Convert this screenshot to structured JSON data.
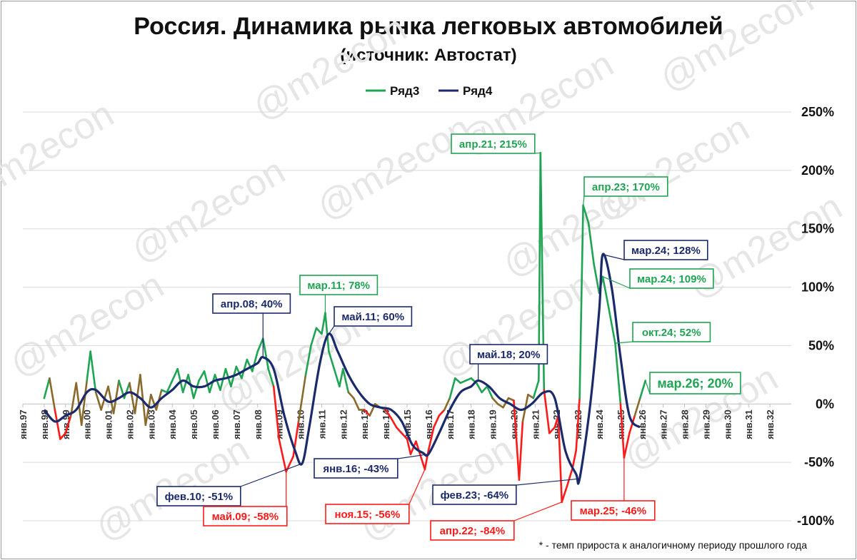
{
  "title": "Россия. Динамика рынка легковых автомобилей",
  "subtitle": "(источник: Автостат)",
  "footnote": "* - темп прироста к аналогичному периоду прошлого года",
  "watermark": "@m2econ",
  "colors": {
    "green": "#1ea453",
    "red": "#ff1a1a",
    "brown": "#8a6a2a",
    "navy": "#1b2a6b",
    "grid": "#d9d9d9"
  },
  "chart_data": {
    "type": "line",
    "legend_position": "top",
    "y_unit": "%",
    "ylim": [
      -100,
      250
    ],
    "yticks": [
      250,
      200,
      150,
      100,
      50,
      0,
      -50,
      -100
    ],
    "ytick_labels": [
      "250%",
      "200%",
      "150%",
      "100%",
      "50%",
      "0%",
      "-50%",
      "-100%"
    ],
    "x_start": "1997-01",
    "x_end": "2032-12",
    "xtick_labels": [
      "янв.97",
      "янв.98",
      "янв.99",
      "янв.00",
      "янв.01",
      "янв.02",
      "янв.03",
      "янв.04",
      "янв.05",
      "янв.06",
      "янв.07",
      "янв.08",
      "янв.09",
      "янв.10",
      "янв.11",
      "янв.12",
      "янв.13",
      "янв.14",
      "янв.15",
      "янв.16",
      "янв.17",
      "янв.18",
      "янв.19",
      "янв.20",
      "янв.21",
      "янв.22",
      "янв.23",
      "янв.24",
      "янв.25",
      "янв.26",
      "янв.27",
      "янв.28",
      "янв.29",
      "янв.30",
      "янв.31",
      "янв.32"
    ],
    "series": [
      {
        "name": "Ряд3",
        "color_positive": "#1ea453",
        "color_negative": "#ff1a1a",
        "points": [
          [
            "1998-01",
            5
          ],
          [
            "1998-04",
            22
          ],
          [
            "1998-07",
            -5
          ],
          [
            "1998-10",
            -30
          ],
          [
            "1999-01",
            -25
          ],
          [
            "1999-04",
            -10
          ],
          [
            "1999-07",
            18
          ],
          [
            "1999-10",
            -18
          ],
          [
            "2000-01",
            20
          ],
          [
            "2000-03",
            45
          ],
          [
            "2000-06",
            10
          ],
          [
            "2000-09",
            -5
          ],
          [
            "2001-01",
            15
          ],
          [
            "2001-04",
            -8
          ],
          [
            "2001-07",
            20
          ],
          [
            "2001-10",
            5
          ],
          [
            "2002-01",
            18
          ],
          [
            "2002-04",
            -8
          ],
          [
            "2002-07",
            25
          ],
          [
            "2002-10",
            -18
          ],
          [
            "2003-01",
            8
          ],
          [
            "2003-04",
            -5
          ],
          [
            "2003-07",
            12
          ],
          [
            "2003-10",
            10
          ],
          [
            "2004-01",
            20
          ],
          [
            "2004-04",
            30
          ],
          [
            "2004-07",
            10
          ],
          [
            "2004-10",
            25
          ],
          [
            "2005-01",
            5
          ],
          [
            "2005-04",
            20
          ],
          [
            "2005-07",
            28
          ],
          [
            "2005-10",
            10
          ],
          [
            "2006-01",
            25
          ],
          [
            "2006-04",
            12
          ],
          [
            "2006-07",
            30
          ],
          [
            "2006-10",
            15
          ],
          [
            "2007-01",
            32
          ],
          [
            "2007-04",
            22
          ],
          [
            "2007-07",
            38
          ],
          [
            "2007-10",
            28
          ],
          [
            "2008-01",
            45
          ],
          [
            "2008-04",
            56
          ],
          [
            "2008-07",
            30
          ],
          [
            "2008-10",
            15
          ],
          [
            "2009-01",
            -30
          ],
          [
            "2009-05",
            -58
          ],
          [
            "2009-09",
            -45
          ],
          [
            "2009-12",
            -15
          ],
          [
            "2010-04",
            25
          ],
          [
            "2010-07",
            50
          ],
          [
            "2010-10",
            65
          ],
          [
            "2011-01",
            60
          ],
          [
            "2011-03",
            78
          ],
          [
            "2011-05",
            45
          ],
          [
            "2011-08",
            30
          ],
          [
            "2011-11",
            15
          ],
          [
            "2012-01",
            30
          ],
          [
            "2012-04",
            10
          ],
          [
            "2012-07",
            5
          ],
          [
            "2012-10",
            -5
          ],
          [
            "2013-01",
            -5
          ],
          [
            "2013-04",
            -10
          ],
          [
            "2013-07",
            0
          ],
          [
            "2013-10",
            -3
          ],
          [
            "2014-01",
            -5
          ],
          [
            "2014-04",
            -12
          ],
          [
            "2014-07",
            -20
          ],
          [
            "2014-10",
            -25
          ],
          [
            "2015-01",
            -30
          ],
          [
            "2015-03",
            -43
          ],
          [
            "2015-06",
            -32
          ],
          [
            "2015-11",
            -56
          ],
          [
            "2016-01",
            -40
          ],
          [
            "2016-04",
            -20
          ],
          [
            "2016-07",
            -10
          ],
          [
            "2016-10",
            -5
          ],
          [
            "2017-01",
            5
          ],
          [
            "2017-04",
            22
          ],
          [
            "2017-07",
            18
          ],
          [
            "2017-10",
            20
          ],
          [
            "2018-01",
            22
          ],
          [
            "2018-04",
            18
          ],
          [
            "2018-07",
            10
          ],
          [
            "2018-10",
            15
          ],
          [
            "2019-01",
            5
          ],
          [
            "2019-04",
            0
          ],
          [
            "2019-07",
            -3
          ],
          [
            "2019-10",
            5
          ],
          [
            "2020-01",
            3
          ],
          [
            "2020-04",
            -65
          ],
          [
            "2020-06",
            -15
          ],
          [
            "2020-09",
            8
          ],
          [
            "2020-12",
            5
          ],
          [
            "2021-03",
            20
          ],
          [
            "2021-04",
            215
          ],
          [
            "2021-06",
            12
          ],
          [
            "2021-09",
            -25
          ],
          [
            "2021-12",
            -20
          ],
          [
            "2022-02",
            -10
          ],
          [
            "2022-04",
            -84
          ],
          [
            "2022-07",
            -70
          ],
          [
            "2022-10",
            -55
          ],
          [
            "2022-12",
            -40
          ],
          [
            "2023-02",
            5
          ],
          [
            "2023-04",
            170
          ],
          [
            "2023-07",
            155
          ],
          [
            "2023-10",
            120
          ],
          [
            "2024-01",
            95
          ],
          [
            "2024-03",
            109
          ],
          [
            "2024-06",
            85
          ],
          [
            "2024-10",
            52
          ],
          [
            "2025-01",
            0
          ],
          [
            "2025-03",
            -46
          ],
          [
            "2025-06",
            -25
          ],
          [
            "2025-09",
            -10
          ],
          [
            "2025-12",
            5
          ],
          [
            "2026-03",
            20
          ]
        ]
      },
      {
        "name": "Ряд4",
        "color": "#1b2a6b",
        "points": [
          [
            "1998-01",
            -5
          ],
          [
            "1998-07",
            -15
          ],
          [
            "1999-01",
            -10
          ],
          [
            "1999-07",
            -5
          ],
          [
            "2000-01",
            10
          ],
          [
            "2000-06",
            12
          ],
          [
            "2001-01",
            2
          ],
          [
            "2001-07",
            5
          ],
          [
            "2002-01",
            10
          ],
          [
            "2002-07",
            5
          ],
          [
            "2003-01",
            -3
          ],
          [
            "2003-07",
            5
          ],
          [
            "2004-01",
            12
          ],
          [
            "2004-07",
            20
          ],
          [
            "2005-01",
            15
          ],
          [
            "2005-07",
            15
          ],
          [
            "2006-01",
            20
          ],
          [
            "2006-07",
            22
          ],
          [
            "2007-01",
            25
          ],
          [
            "2007-07",
            30
          ],
          [
            "2008-01",
            35
          ],
          [
            "2008-04",
            40
          ],
          [
            "2008-10",
            30
          ],
          [
            "2009-04",
            -10
          ],
          [
            "2009-10",
            -40
          ],
          [
            "2010-02",
            -51
          ],
          [
            "2010-06",
            -20
          ],
          [
            "2010-12",
            35
          ],
          [
            "2011-05",
            60
          ],
          [
            "2011-10",
            45
          ],
          [
            "2012-04",
            25
          ],
          [
            "2012-10",
            10
          ],
          [
            "2013-04",
            0
          ],
          [
            "2013-10",
            -3
          ],
          [
            "2014-04",
            -5
          ],
          [
            "2014-10",
            -15
          ],
          [
            "2015-04",
            -35
          ],
          [
            "2015-10",
            -42
          ],
          [
            "2016-01",
            -43
          ],
          [
            "2016-07",
            -25
          ],
          [
            "2017-01",
            -5
          ],
          [
            "2017-07",
            10
          ],
          [
            "2018-01",
            15
          ],
          [
            "2018-05",
            20
          ],
          [
            "2018-11",
            15
          ],
          [
            "2019-05",
            5
          ],
          [
            "2019-11",
            0
          ],
          [
            "2020-05",
            -5
          ],
          [
            "2020-11",
            0
          ],
          [
            "2021-06",
            10
          ],
          [
            "2021-12",
            5
          ],
          [
            "2022-06",
            -40
          ],
          [
            "2022-12",
            -60
          ],
          [
            "2023-02",
            -64
          ],
          [
            "2023-08",
            0
          ],
          [
            "2024-01",
            80
          ],
          [
            "2024-03",
            128
          ],
          [
            "2024-08",
            100
          ],
          [
            "2025-01",
            40
          ],
          [
            "2025-06",
            -10
          ],
          [
            "2025-12",
            -20
          ]
        ]
      }
    ],
    "annotations": [
      {
        "text": "апр.08; 40%",
        "series": "Ряд4",
        "color": "navy"
      },
      {
        "text": "мар.11; 78%",
        "series": "Ряд3",
        "color": "green"
      },
      {
        "text": "май.11; 60%",
        "series": "Ряд4",
        "color": "navy"
      },
      {
        "text": "май.18; 20%",
        "series": "Ряд4",
        "color": "navy"
      },
      {
        "text": "апр.21; 215%",
        "series": "Ряд3",
        "color": "green"
      },
      {
        "text": "апр.23; 170%",
        "series": "Ряд3",
        "color": "green"
      },
      {
        "text": "мар.24; 128%",
        "series": "Ряд4",
        "color": "navy"
      },
      {
        "text": "мар.24; 109%",
        "series": "Ряд3",
        "color": "green"
      },
      {
        "text": "окт.24; 52%",
        "series": "Ряд3",
        "color": "green"
      },
      {
        "text": "мар.26; 20%",
        "series": "Ряд3",
        "color": "green"
      },
      {
        "text": "фев.10; -51%",
        "series": "Ряд4",
        "color": "navy"
      },
      {
        "text": "май.09; -58%",
        "series": "Ряд3",
        "color": "red"
      },
      {
        "text": "янв.16; -43%",
        "series": "Ряд4",
        "color": "navy"
      },
      {
        "text": "ноя.15; -56%",
        "series": "Ряд3",
        "color": "red"
      },
      {
        "text": "фев.23; -64%",
        "series": "Ряд4",
        "color": "navy"
      },
      {
        "text": "апр.22; -84%",
        "series": "Ряд3",
        "color": "red"
      },
      {
        "text": "мар.25; -46%",
        "series": "Ряд3",
        "color": "red"
      }
    ]
  }
}
